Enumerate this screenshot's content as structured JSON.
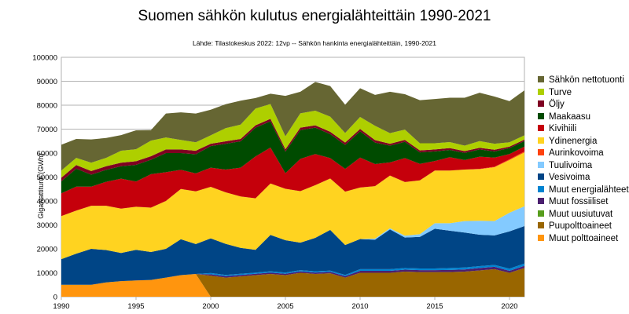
{
  "chart_data": {
    "type": "area",
    "stacked": true,
    "title": "Suomen sähkön kulutus energialähteittäin 1990-2021",
    "subtitle": "Lähde: Tilastokeskus 2022: 12vp -- Sähkön hankinta energialähteittäin, 1990-2021",
    "ylabel": "Gigawattitunti (GWh)",
    "xlabel": "",
    "ylim": [
      0,
      100000
    ],
    "xlim": [
      1990,
      2021
    ],
    "yticks": [
      0,
      10000,
      20000,
      30000,
      40000,
      50000,
      60000,
      70000,
      80000,
      90000,
      100000
    ],
    "xticks": [
      1990,
      1995,
      2000,
      2005,
      2010,
      2015,
      2020
    ],
    "grid": "horizontal",
    "legend_position": "right",
    "x": [
      1990,
      1991,
      1992,
      1993,
      1994,
      1995,
      1996,
      1997,
      1998,
      1999,
      2000,
      2001,
      2002,
      2003,
      2004,
      2005,
      2006,
      2007,
      2008,
      2009,
      2010,
      2011,
      2012,
      2013,
      2014,
      2015,
      2016,
      2017,
      2018,
      2019,
      2020,
      2021
    ],
    "series": [
      {
        "name": "Muut polttoaineet",
        "color": "#ff950e",
        "values": [
          5000,
          5000,
          5000,
          6000,
          6500,
          6800,
          7000,
          8000,
          9000,
          9500,
          0,
          0,
          0,
          0,
          0,
          0,
          0,
          0,
          0,
          0,
          0,
          0,
          0,
          0,
          0,
          0,
          0,
          0,
          0,
          0,
          0,
          0
        ]
      },
      {
        "name": "Puupolttoaineet",
        "color": "#996600",
        "values": [
          0,
          0,
          0,
          0,
          0,
          0,
          0,
          0,
          0,
          0,
          8800,
          8000,
          8500,
          9000,
          9500,
          9000,
          10000,
          9500,
          9800,
          8000,
          10000,
          10000,
          10000,
          10500,
          10300,
          10300,
          10300,
          10500,
          11000,
          11500,
          10000,
          12000
        ]
      },
      {
        "name": "Muut uusiutuvat",
        "color": "#579d1c",
        "values": [
          0,
          0,
          0,
          0,
          0,
          0,
          0,
          0,
          0,
          0,
          0,
          0,
          0,
          0,
          0,
          0,
          0,
          0,
          0,
          0,
          0,
          0,
          0,
          0,
          0,
          0,
          0,
          0,
          0,
          0,
          0,
          0
        ]
      },
      {
        "name": "Muut fossiiliset",
        "color": "#4b1f6f",
        "values": [
          0,
          0,
          0,
          0,
          0,
          0,
          0,
          0,
          0,
          0,
          600,
          600,
          600,
          600,
          600,
          600,
          600,
          600,
          600,
          600,
          800,
          800,
          800,
          800,
          800,
          800,
          900,
          900,
          1000,
          1000,
          800,
          900
        ]
      },
      {
        "name": "Muut energialähteet",
        "color": "#0084d1",
        "values": [
          0,
          0,
          0,
          0,
          0,
          0,
          0,
          0,
          0,
          0,
          500,
          500,
          500,
          500,
          500,
          500,
          500,
          500,
          500,
          500,
          700,
          700,
          700,
          700,
          700,
          700,
          800,
          800,
          800,
          800,
          900,
          1000
        ]
      },
      {
        "name": "Vesivoima",
        "color": "#004586",
        "values": [
          10700,
          13000,
          15000,
          13500,
          11800,
          12800,
          11700,
          12000,
          15000,
          12500,
          14500,
          13000,
          10800,
          9500,
          15200,
          13500,
          11500,
          14000,
          17000,
          12500,
          12600,
          12300,
          16600,
          12700,
          13200,
          16600,
          15600,
          14600,
          13100,
          12300,
          15600,
          15600
        ]
      },
      {
        "name": "Tuulivoima",
        "color": "#83caff",
        "values": [
          0,
          0,
          0,
          0,
          0,
          0,
          0,
          0,
          0,
          0,
          0,
          0,
          0,
          0,
          0,
          0,
          0,
          0,
          0,
          0,
          0,
          500,
          500,
          800,
          1100,
          2300,
          3100,
          4800,
          5800,
          6000,
          7800,
          8300
        ]
      },
      {
        "name": "Ydinenergia",
        "color": "#ffd320",
        "values": [
          18000,
          18000,
          18000,
          18500,
          18500,
          18000,
          18500,
          20000,
          21000,
          22000,
          21500,
          21500,
          21500,
          21500,
          21500,
          21500,
          21500,
          22000,
          21500,
          22300,
          21500,
          21900,
          22000,
          22400,
          22500,
          22000,
          22000,
          21500,
          21600,
          22500,
          22000,
          22500
        ]
      },
      {
        "name": "Aurinkovoima",
        "color": "#ff420e",
        "values": [
          0,
          0,
          0,
          0,
          0,
          0,
          0,
          0,
          0,
          0,
          0,
          0,
          0,
          0,
          0,
          0,
          0,
          0,
          0,
          0,
          0,
          0,
          0,
          0,
          0,
          0,
          0,
          0,
          100,
          200,
          300,
          400
        ]
      },
      {
        "name": "Kivihiili",
        "color": "#c5000b",
        "values": [
          9500,
          10000,
          8000,
          10000,
          12500,
          10500,
          14000,
          12000,
          8000,
          7500,
          8000,
          9500,
          12000,
          17500,
          15000,
          6500,
          13500,
          13000,
          8500,
          9500,
          12500,
          9200,
          5500,
          10000,
          6900,
          4000,
          5600,
          4000,
          5100,
          3800,
          2200,
          2000
        ]
      },
      {
        "name": "Maakaasu",
        "color": "#004b00",
        "values": [
          5000,
          7500,
          5000,
          5000,
          5200,
          7000,
          6000,
          8000,
          7000,
          8000,
          9000,
          10800,
          11000,
          12000,
          11000,
          9000,
          12000,
          11000,
          10000,
          10000,
          11000,
          9000,
          7000,
          6800,
          4800,
          4000,
          3000,
          3000,
          3000,
          2600,
          2500,
          2300
        ]
      },
      {
        "name": "Öljy",
        "color": "#7e0021",
        "values": [
          1500,
          1500,
          1500,
          1500,
          1500,
          1500,
          1500,
          1500,
          1500,
          1500,
          1000,
          1000,
          1000,
          1000,
          1000,
          1000,
          1000,
          1000,
          1000,
          1000,
          1000,
          1000,
          800,
          800,
          800,
          800,
          800,
          700,
          700,
          700,
          600,
          600
        ]
      },
      {
        "name": "Turve",
        "color": "#aecf00",
        "values": [
          3000,
          3000,
          3500,
          3500,
          5000,
          5000,
          6500,
          5000,
          4000,
          3500,
          3500,
          5500,
          6000,
          7000,
          6200,
          5400,
          6000,
          6100,
          6300,
          4000,
          5000,
          6000,
          4400,
          4300,
          3000,
          2600,
          2500,
          2300,
          2800,
          2500,
          1800,
          1800
        ]
      },
      {
        "name": "Sähkön nettotuonti",
        "color": "#666633",
        "values": [
          10800,
          7900,
          9700,
          8300,
          6500,
          7900,
          4400,
          10000,
          11500,
          12000,
          10700,
          10000,
          10000,
          4400,
          4300,
          16900,
          9000,
          12000,
          12800,
          11800,
          12000,
          12900,
          17300,
          14800,
          18000,
          18500,
          18500,
          20000,
          20200,
          19700,
          17200,
          18800
        ]
      }
    ]
  },
  "legend_order": [
    "Sähkön nettotuonti",
    "Turve",
    "Öljy",
    "Maakaasu",
    "Kivihiili",
    "Ydinenergia",
    "Aurinkovoima",
    "Tuulivoima",
    "Vesivoima",
    "Muut energialähteet",
    "Muut fossiiliset",
    "Muut uusiutuvat",
    "Puupolttoaineet",
    "Muut polttoaineet"
  ]
}
